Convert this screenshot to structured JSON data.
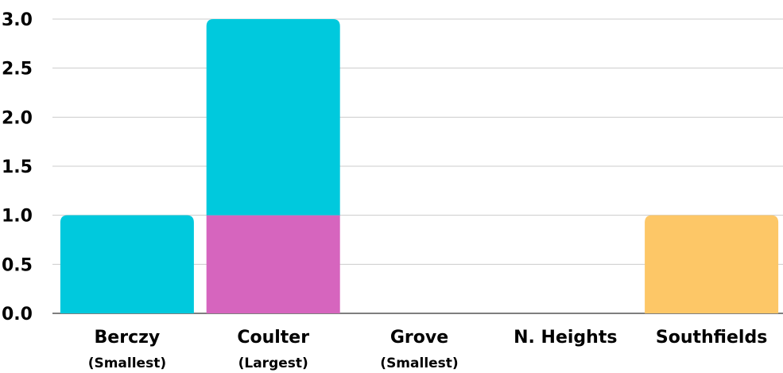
{
  "chart_data": {
    "type": "bar",
    "stacked": true,
    "categories": [
      "Berczy",
      "Coulter",
      "Grove",
      "N. Heights",
      "Southfields"
    ],
    "category_notes": [
      "(Smallest)",
      "(Largest)",
      "(Smallest)",
      "",
      ""
    ],
    "series": [
      {
        "values": [
          0,
          1,
          0,
          0,
          0
        ],
        "color": "#d665be"
      },
      {
        "values": [
          1,
          2,
          0,
          0,
          0
        ],
        "color": "#00c9dd"
      },
      {
        "values": [
          0,
          0,
          0,
          0,
          1
        ],
        "color": "#fdc767"
      }
    ],
    "yticks": [
      "0.0",
      "0.5",
      "1.0",
      "1.5",
      "2.0",
      "2.5",
      "3.0"
    ],
    "ylim": [
      0,
      3
    ],
    "grid": true,
    "legend": "none"
  }
}
